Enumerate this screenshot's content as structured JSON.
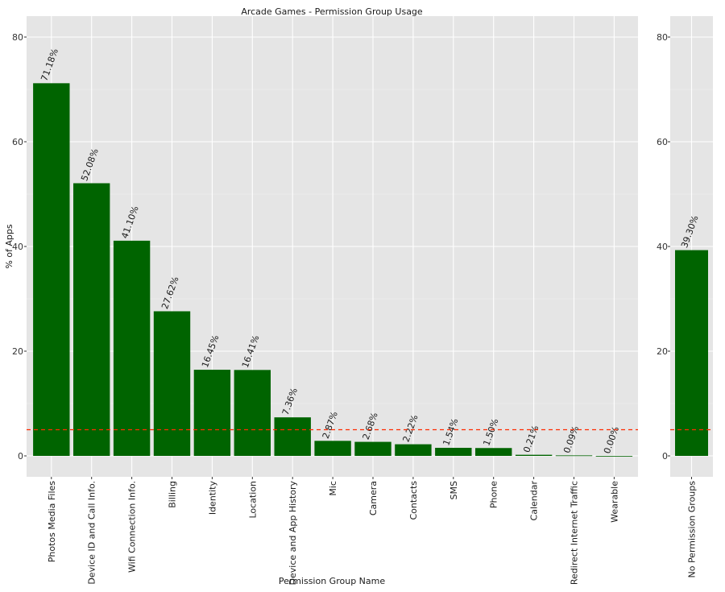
{
  "chart_data": [
    {
      "type": "bar",
      "title": "Arcade Games - Permission Group Usage",
      "xlabel": "Permission Group Name",
      "ylabel": "% of Apps",
      "ylim": [
        -4,
        84
      ],
      "yticks": [
        0,
        20,
        40,
        60,
        80
      ],
      "grid": true,
      "bar_color": "#006400",
      "panel_bg": "#e5e5e5",
      "grid_color": "#ffffff",
      "reference_line": {
        "value": 5,
        "color": "#ff2a00",
        "style": "dashed"
      },
      "categories": [
        "Photos Media Files",
        "Device ID and Call Info.",
        "Wifi Connection Info.",
        "Billing",
        "Identity",
        "Location",
        "Device and App History",
        "Mic",
        "Camera",
        "Contacts",
        "SMS",
        "Phone",
        "Calendar",
        "Redirect Internet Traffic",
        "Wearable"
      ],
      "values": [
        71.18,
        52.08,
        41.1,
        27.62,
        16.45,
        16.41,
        7.36,
        2.87,
        2.68,
        2.22,
        1.54,
        1.5,
        0.21,
        0.09,
        0.0
      ],
      "labels": [
        "71.18%",
        "52.08%",
        "41.10%",
        "27.62%",
        "16.45%",
        "16.41%",
        "7.36%",
        "2.87%",
        "2.68%",
        "2.22%",
        "1.54%",
        "1.50%",
        "0.21%",
        "0.09%",
        "0.00%"
      ]
    },
    {
      "type": "bar",
      "ylim": [
        -4,
        84
      ],
      "yticks": [
        0,
        20,
        40,
        60,
        80
      ],
      "grid": true,
      "bar_color": "#006400",
      "reference_line": {
        "value": 5,
        "color": "#ff2a00",
        "style": "dashed"
      },
      "categories": [
        "No Permission Groups"
      ],
      "values": [
        39.3
      ],
      "labels": [
        "39.30%"
      ]
    }
  ]
}
